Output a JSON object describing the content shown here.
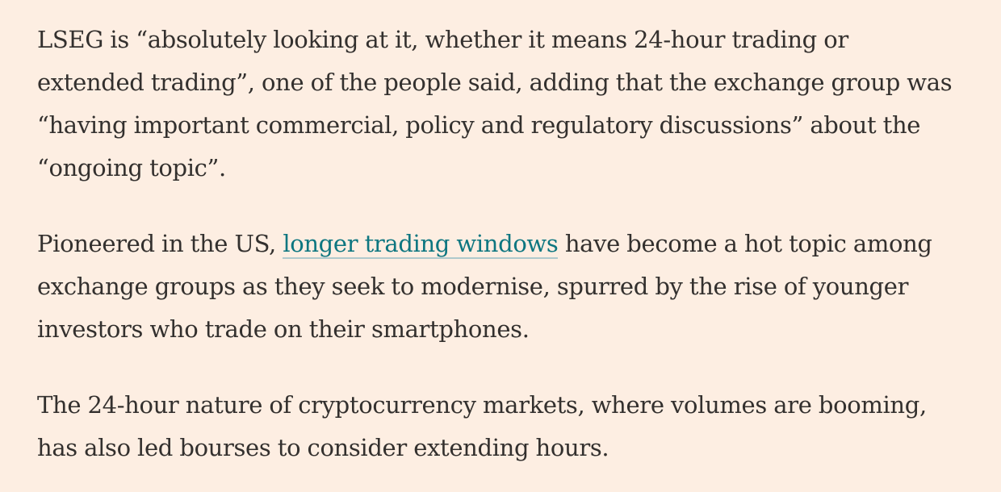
{
  "article": {
    "paragraphs": [
      {
        "text": "LSEG is “absolutely looking at it, whether it means 24-hour trading or extended trading”, one of the people said, adding that the exchange group was “having important commercial, policy and regulatory discussions” about the “ongoing topic”."
      },
      {
        "before": "Pioneered in the US, ",
        "link": "longer trading windows",
        "after": " have become a hot topic among exchange groups as they seek to modernise, spurred by the rise of younger investors who trade on their smartphones."
      },
      {
        "text": "The 24-hour nature of cryptocurrency markets, where volumes are booming, has also led bourses to consider extending hours."
      }
    ]
  },
  "colors": {
    "background": "#FDEEE2",
    "body_text": "#33302E",
    "link_text": "#0D7680",
    "link_underline": "#AFC9CC"
  }
}
